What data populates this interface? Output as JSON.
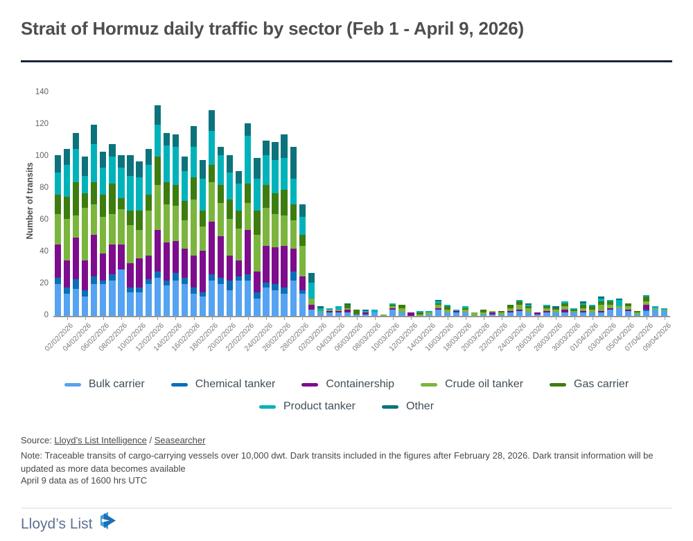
{
  "title": "Strait of Hormuz daily traffic by sector (Feb 1 - April 9, 2026)",
  "chart_data": {
    "type": "bar",
    "stacked": true,
    "title": "Strait of Hormuz daily traffic by sector (Feb 1 - April 9, 2026)",
    "xlabel": "",
    "ylabel": "Number of transits",
    "ylim": [
      0,
      140
    ],
    "yticks": [
      0,
      20,
      40,
      60,
      80,
      100,
      120,
      140
    ],
    "grid": false,
    "legend_position": "bottom",
    "x_tick_every": 2,
    "categories": [
      "01/02/2026",
      "02/02/2026",
      "03/02/2026",
      "04/02/2026",
      "05/02/2026",
      "06/02/2026",
      "07/02/2026",
      "08/02/2026",
      "09/02/2026",
      "10/02/2026",
      "11/02/2026",
      "12/02/2026",
      "13/02/2026",
      "14/02/2026",
      "15/02/2026",
      "16/02/2026",
      "17/02/2026",
      "18/02/2026",
      "19/02/2026",
      "20/02/2026",
      "21/02/2026",
      "22/02/2026",
      "23/02/2026",
      "24/02/2026",
      "25/02/2026",
      "26/02/2026",
      "27/02/2026",
      "28/02/2026",
      "01/03/2026",
      "02/03/2026",
      "03/03/2026",
      "04/03/2026",
      "05/03/2026",
      "06/03/2026",
      "07/03/2026",
      "08/03/2026",
      "09/03/2026",
      "10/03/2026",
      "11/03/2026",
      "12/03/2026",
      "13/03/2026",
      "14/03/2026",
      "15/03/2026",
      "16/03/2026",
      "17/03/2026",
      "18/03/2026",
      "19/03/2026",
      "20/03/2026",
      "21/03/2026",
      "22/03/2026",
      "23/03/2026",
      "24/03/2026",
      "25/03/2026",
      "26/03/2026",
      "27/03/2026",
      "28/03/2026",
      "29/03/2026",
      "30/03/2026",
      "31/03/2026",
      "01/04/2026",
      "02/04/2026",
      "03/04/2026",
      "04/04/2026",
      "05/04/2026",
      "06/04/2026",
      "07/04/2026",
      "08/04/2026",
      "09/04/2026"
    ],
    "series": [
      {
        "name": "Bulk carrier",
        "color": "#55a3f2",
        "values": [
          20,
          14,
          17,
          12,
          20,
          20,
          22,
          29,
          15,
          15,
          20,
          24,
          19,
          22,
          20,
          14,
          12,
          22,
          20,
          16,
          22,
          22,
          11,
          18,
          16,
          14,
          22,
          14,
          4,
          2,
          2,
          2,
          2,
          1,
          1,
          2,
          0,
          4,
          2,
          0,
          0,
          1,
          4,
          2,
          2,
          2,
          0,
          1,
          1,
          1,
          2,
          3,
          2,
          1,
          2,
          2,
          2,
          2,
          2,
          2,
          2,
          4,
          5,
          3,
          1,
          3,
          4,
          3
        ]
      },
      {
        "name": "Chemical tanker",
        "color": "#0d6eb8",
        "values": [
          4,
          4,
          6,
          4,
          5,
          2,
          4,
          0,
          3,
          3,
          3,
          4,
          3,
          5,
          4,
          4,
          3,
          4,
          4,
          6,
          3,
          4,
          4,
          3,
          4,
          4,
          6,
          2,
          0,
          0,
          0,
          0,
          0,
          0,
          0,
          0,
          0,
          0,
          0,
          0,
          0,
          0,
          0,
          0,
          0,
          0,
          0,
          0,
          0,
          0,
          0,
          0,
          0,
          0,
          0,
          0,
          0,
          0,
          0,
          0,
          0,
          0,
          0,
          0,
          0,
          1,
          0,
          0
        ]
      },
      {
        "name": "Containership",
        "color": "#7d0d8d",
        "values": [
          21,
          17,
          26,
          19,
          26,
          17,
          19,
          16,
          15,
          18,
          15,
          26,
          24,
          20,
          18,
          20,
          26,
          33,
          26,
          16,
          10,
          28,
          13,
          23,
          23,
          26,
          14,
          9,
          3,
          0,
          1,
          1,
          2,
          0,
          1,
          0,
          0,
          1,
          0,
          2,
          0,
          0,
          1,
          0,
          1,
          0,
          0,
          0,
          1,
          0,
          1,
          1,
          0,
          1,
          1,
          0,
          2,
          0,
          1,
          0,
          1,
          1,
          0,
          1,
          0,
          3,
          0,
          0
        ]
      },
      {
        "name": "Crude oil tanker",
        "color": "#7cb53e",
        "values": [
          19,
          26,
          14,
          33,
          19,
          23,
          19,
          22,
          24,
          18,
          28,
          28,
          24,
          22,
          18,
          35,
          15,
          25,
          21,
          23,
          20,
          17,
          23,
          24,
          21,
          19,
          18,
          19,
          4,
          1,
          1,
          1,
          1,
          0,
          0,
          0,
          1,
          1,
          3,
          0,
          1,
          1,
          2,
          2,
          0,
          2,
          2,
          1,
          1,
          1,
          2,
          3,
          3,
          0,
          2,
          2,
          2,
          1,
          2,
          2,
          4,
          2,
          1,
          2,
          1,
          2,
          1,
          1
        ]
      },
      {
        "name": "Gas carrier",
        "color": "#3d7d10",
        "values": [
          12,
          14,
          21,
          9,
          14,
          14,
          19,
          7,
          9,
          12,
          10,
          18,
          14,
          13,
          12,
          14,
          10,
          11,
          11,
          12,
          11,
          12,
          15,
          14,
          13,
          16,
          10,
          7,
          0,
          0,
          0,
          0,
          2,
          3,
          0,
          0,
          0,
          1,
          2,
          0,
          1,
          0,
          1,
          2,
          0,
          1,
          0,
          2,
          0,
          1,
          2,
          2,
          1,
          0,
          1,
          1,
          2,
          1,
          2,
          2,
          2,
          2,
          0,
          2,
          1,
          3,
          0,
          0
        ]
      },
      {
        "name": "Product tanker",
        "color": "#00b3ba",
        "values": [
          14,
          20,
          21,
          11,
          24,
          17,
          17,
          19,
          22,
          21,
          19,
          20,
          23,
          24,
          19,
          19,
          20,
          21,
          19,
          17,
          17,
          30,
          20,
          19,
          21,
          20,
          16,
          11,
          10,
          2,
          1,
          2,
          0,
          0,
          1,
          2,
          0,
          1,
          0,
          0,
          1,
          1,
          1,
          1,
          1,
          1,
          0,
          0,
          0,
          0,
          0,
          1,
          1,
          0,
          1,
          0,
          1,
          1,
          1,
          1,
          2,
          1,
          4,
          0,
          0,
          1,
          1,
          1
        ]
      },
      {
        "name": "Other",
        "color": "#0c737c",
        "values": [
          11,
          10,
          10,
          12,
          12,
          10,
          8,
          8,
          13,
          10,
          10,
          12,
          8,
          8,
          9,
          13,
          12,
          13,
          5,
          11,
          8,
          8,
          13,
          9,
          11,
          15,
          20,
          8,
          6,
          1,
          0,
          0,
          1,
          0,
          1,
          0,
          0,
          0,
          0,
          0,
          0,
          0,
          1,
          0,
          0,
          0,
          0,
          0,
          0,
          0,
          0,
          0,
          1,
          0,
          0,
          1,
          0,
          0,
          1,
          0,
          1,
          0,
          1,
          0,
          0,
          0,
          0,
          0
        ]
      }
    ]
  },
  "footer": {
    "source_prefix": "Source: ",
    "source_link1": "Lloyd’s List Intelligence",
    "source_separator": " / ",
    "source_link2": "Seasearcher",
    "note": "Note: Traceable transits of cargo-carrying vessels over 10,000 dwt. Dark transits included in the figures after February 28, 2026. Dark transit information will be updated as more data becomes available",
    "data_asof": "April 9 data as of 1600 hrs UTC",
    "brand": "Lloyd’s List"
  },
  "logo_colors": {
    "light_blue": "#3fa0d9",
    "dark_blue": "#1b70b6"
  }
}
